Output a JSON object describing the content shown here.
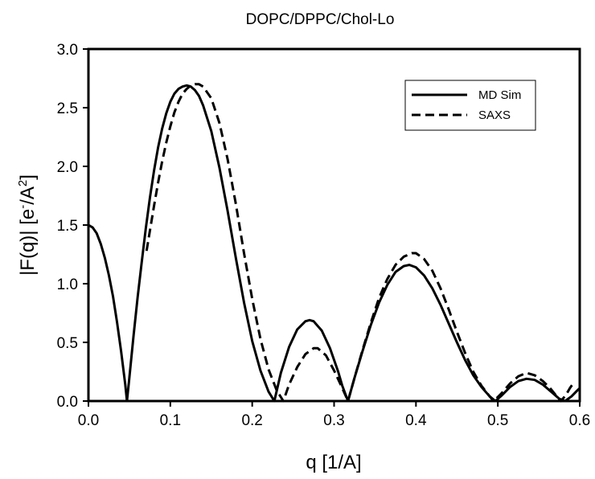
{
  "chart_data": {
    "type": "line",
    "title": "DOPC/DPPC/Chol-Lo",
    "xlabel": "q [1/A]",
    "ylabel_parts": [
      "|F(q)| [e",
      "-",
      "/A",
      "2",
      "]"
    ],
    "xlim": [
      0.0,
      0.6
    ],
    "ylim": [
      0.0,
      3.0
    ],
    "xticks": [
      "0.0",
      "0.1",
      "0.2",
      "0.3",
      "0.4",
      "0.5",
      "0.6"
    ],
    "yticks": [
      "0.0",
      "0.5",
      "1.0",
      "1.5",
      "2.0",
      "2.5",
      "3.0"
    ],
    "grid": false,
    "legend_position": "top-right",
    "series": [
      {
        "name": "MD Sim",
        "style": "solid",
        "color": "#000000",
        "points": [
          [
            0.0,
            1.5
          ],
          [
            0.005,
            1.48
          ],
          [
            0.01,
            1.43
          ],
          [
            0.015,
            1.34
          ],
          [
            0.02,
            1.22
          ],
          [
            0.025,
            1.07
          ],
          [
            0.03,
            0.89
          ],
          [
            0.035,
            0.67
          ],
          [
            0.04,
            0.42
          ],
          [
            0.045,
            0.14
          ],
          [
            0.047,
            0.0
          ],
          [
            0.05,
            0.2
          ],
          [
            0.055,
            0.55
          ],
          [
            0.06,
            0.88
          ],
          [
            0.065,
            1.18
          ],
          [
            0.07,
            1.47
          ],
          [
            0.075,
            1.73
          ],
          [
            0.08,
            1.96
          ],
          [
            0.085,
            2.16
          ],
          [
            0.09,
            2.32
          ],
          [
            0.095,
            2.45
          ],
          [
            0.1,
            2.55
          ],
          [
            0.105,
            2.62
          ],
          [
            0.11,
            2.66
          ],
          [
            0.115,
            2.68
          ],
          [
            0.12,
            2.69
          ],
          [
            0.125,
            2.68
          ],
          [
            0.13,
            2.65
          ],
          [
            0.135,
            2.6
          ],
          [
            0.14,
            2.52
          ],
          [
            0.15,
            2.3
          ],
          [
            0.16,
            1.99
          ],
          [
            0.17,
            1.62
          ],
          [
            0.18,
            1.22
          ],
          [
            0.19,
            0.84
          ],
          [
            0.2,
            0.51
          ],
          [
            0.21,
            0.26
          ],
          [
            0.22,
            0.08
          ],
          [
            0.227,
            0.0
          ],
          [
            0.235,
            0.24
          ],
          [
            0.245,
            0.46
          ],
          [
            0.255,
            0.61
          ],
          [
            0.265,
            0.68
          ],
          [
            0.27,
            0.69
          ],
          [
            0.275,
            0.68
          ],
          [
            0.285,
            0.6
          ],
          [
            0.295,
            0.45
          ],
          [
            0.305,
            0.25
          ],
          [
            0.31,
            0.13
          ],
          [
            0.317,
            0.0
          ],
          [
            0.325,
            0.2
          ],
          [
            0.335,
            0.43
          ],
          [
            0.345,
            0.65
          ],
          [
            0.355,
            0.84
          ],
          [
            0.365,
            0.99
          ],
          [
            0.375,
            1.1
          ],
          [
            0.385,
            1.15
          ],
          [
            0.392,
            1.16
          ],
          [
            0.4,
            1.14
          ],
          [
            0.41,
            1.07
          ],
          [
            0.42,
            0.96
          ],
          [
            0.43,
            0.82
          ],
          [
            0.44,
            0.66
          ],
          [
            0.45,
            0.5
          ],
          [
            0.46,
            0.35
          ],
          [
            0.47,
            0.22
          ],
          [
            0.48,
            0.12
          ],
          [
            0.49,
            0.04
          ],
          [
            0.497,
            0.0
          ],
          [
            0.505,
            0.05
          ],
          [
            0.515,
            0.12
          ],
          [
            0.525,
            0.17
          ],
          [
            0.535,
            0.19
          ],
          [
            0.545,
            0.18
          ],
          [
            0.555,
            0.14
          ],
          [
            0.565,
            0.08
          ],
          [
            0.575,
            0.02
          ],
          [
            0.582,
            0.0
          ],
          [
            0.59,
            0.04
          ],
          [
            0.597,
            0.09
          ],
          [
            0.6,
            0.11
          ]
        ]
      },
      {
        "name": "SAXS",
        "style": "dashed",
        "color": "#000000",
        "points": [
          [
            0.071,
            1.28
          ],
          [
            0.075,
            1.45
          ],
          [
            0.08,
            1.66
          ],
          [
            0.085,
            1.86
          ],
          [
            0.09,
            2.04
          ],
          [
            0.095,
            2.2
          ],
          [
            0.1,
            2.34
          ],
          [
            0.105,
            2.46
          ],
          [
            0.11,
            2.55
          ],
          [
            0.115,
            2.62
          ],
          [
            0.12,
            2.66
          ],
          [
            0.125,
            2.69
          ],
          [
            0.13,
            2.7
          ],
          [
            0.135,
            2.7
          ],
          [
            0.14,
            2.68
          ],
          [
            0.15,
            2.58
          ],
          [
            0.16,
            2.37
          ],
          [
            0.17,
            2.06
          ],
          [
            0.18,
            1.68
          ],
          [
            0.19,
            1.26
          ],
          [
            0.2,
            0.87
          ],
          [
            0.21,
            0.53
          ],
          [
            0.22,
            0.27
          ],
          [
            0.23,
            0.09
          ],
          [
            0.238,
            0.0
          ],
          [
            0.245,
            0.14
          ],
          [
            0.255,
            0.29
          ],
          [
            0.265,
            0.4
          ],
          [
            0.275,
            0.45
          ],
          [
            0.28,
            0.45
          ],
          [
            0.29,
            0.39
          ],
          [
            0.3,
            0.26
          ],
          [
            0.31,
            0.11
          ],
          [
            0.317,
            0.0
          ],
          [
            0.325,
            0.2
          ],
          [
            0.335,
            0.44
          ],
          [
            0.345,
            0.67
          ],
          [
            0.355,
            0.88
          ],
          [
            0.365,
            1.04
          ],
          [
            0.375,
            1.16
          ],
          [
            0.385,
            1.23
          ],
          [
            0.395,
            1.26
          ],
          [
            0.4,
            1.26
          ],
          [
            0.41,
            1.21
          ],
          [
            0.42,
            1.11
          ],
          [
            0.43,
            0.96
          ],
          [
            0.44,
            0.78
          ],
          [
            0.45,
            0.59
          ],
          [
            0.46,
            0.41
          ],
          [
            0.47,
            0.25
          ],
          [
            0.48,
            0.13
          ],
          [
            0.49,
            0.04
          ],
          [
            0.495,
            0.0
          ],
          [
            0.505,
            0.07
          ],
          [
            0.515,
            0.15
          ],
          [
            0.525,
            0.21
          ],
          [
            0.535,
            0.24
          ],
          [
            0.545,
            0.22
          ],
          [
            0.555,
            0.17
          ],
          [
            0.565,
            0.1
          ],
          [
            0.572,
            0.04
          ],
          [
            0.577,
            0.0
          ],
          [
            0.583,
            0.05
          ],
          [
            0.588,
            0.11
          ],
          [
            0.592,
            0.15
          ]
        ]
      }
    ]
  }
}
